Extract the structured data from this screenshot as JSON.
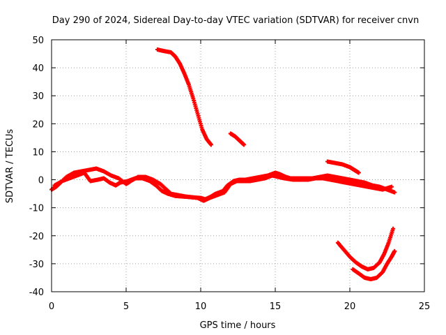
{
  "chart_data": {
    "type": "scatter",
    "title": "Day 290 of 2024, Sidereal Day-to-day VTEC variation (SDTVAR) for receiver cnvn",
    "xlabel": "GPS time / hours",
    "ylabel": "SDTVAR / TECUs",
    "xlim": [
      0,
      25
    ],
    "ylim": [
      -40,
      50
    ],
    "xticks": [
      0,
      5,
      10,
      15,
      20,
      25
    ],
    "yticks": [
      -40,
      -30,
      -20,
      -10,
      0,
      10,
      20,
      30,
      40,
      50
    ],
    "grid": true,
    "marker": "plus",
    "color": "#ff0000",
    "series": [
      {
        "name": "arc-1",
        "points": [
          [
            0.0,
            -3.5
          ],
          [
            0.3,
            -2.5
          ],
          [
            0.6,
            -1.0
          ],
          [
            1.0,
            1.0
          ],
          [
            1.5,
            2.5
          ],
          [
            2.0,
            3.0
          ],
          [
            2.5,
            3.5
          ],
          [
            3.0,
            4.0
          ],
          [
            3.5,
            3.0
          ],
          [
            4.0,
            1.5
          ],
          [
            4.5,
            0.5
          ],
          [
            5.0,
            -1.5
          ],
          [
            5.3,
            -0.5
          ],
          [
            5.8,
            1.0
          ],
          [
            6.3,
            1.0
          ],
          [
            6.8,
            0.0
          ],
          [
            7.3,
            -1.5
          ],
          [
            7.7,
            -3.5
          ],
          [
            8.0,
            -5.0
          ],
          [
            8.5,
            -5.5
          ],
          [
            9.0,
            -6.0
          ],
          [
            9.5,
            -6.3
          ],
          [
            10.0,
            -6.5
          ],
          [
            10.3,
            -7.0
          ],
          [
            10.7,
            -6.0
          ],
          [
            11.0,
            -5.0
          ],
          [
            11.5,
            -4.0
          ],
          [
            11.8,
            -2.0
          ],
          [
            12.2,
            -0.5
          ],
          [
            12.6,
            0.0
          ],
          [
            13.0,
            0.0
          ],
          [
            13.5,
            0.5
          ],
          [
            14.0,
            1.0
          ],
          [
            14.5,
            1.5
          ],
          [
            15.0,
            2.5
          ],
          [
            15.3,
            2.0
          ],
          [
            15.7,
            1.0
          ],
          [
            16.0,
            0.5
          ],
          [
            16.5,
            0.5
          ],
          [
            17.0,
            0.5
          ],
          [
            17.5,
            0.5
          ],
          [
            18.0,
            1.0
          ],
          [
            18.5,
            1.5
          ],
          [
            19.0,
            1.0
          ],
          [
            19.5,
            0.5
          ],
          [
            20.0,
            0.0
          ],
          [
            20.5,
            -0.5
          ],
          [
            21.0,
            -1.0
          ],
          [
            21.5,
            -2.0
          ],
          [
            22.0,
            -2.5
          ],
          [
            22.5,
            -3.5
          ],
          [
            23.0,
            -4.5
          ]
        ]
      },
      {
        "name": "arc-2",
        "points": [
          [
            0.2,
            -2.0
          ],
          [
            0.7,
            -0.5
          ],
          [
            1.2,
            0.5
          ],
          [
            1.7,
            1.5
          ],
          [
            2.2,
            2.5
          ],
          [
            2.6,
            -0.5
          ],
          [
            3.1,
            0.0
          ],
          [
            3.5,
            0.5
          ],
          [
            3.9,
            -1.0
          ],
          [
            4.3,
            -2.0
          ],
          [
            4.6,
            -1.0
          ],
          [
            5.1,
            -0.5
          ],
          [
            5.6,
            0.5
          ],
          [
            6.1,
            0.5
          ],
          [
            6.6,
            -0.5
          ],
          [
            7.0,
            -2.0
          ],
          [
            7.4,
            -4.0
          ],
          [
            7.8,
            -5.0
          ],
          [
            8.3,
            -5.8
          ],
          [
            8.8,
            -6.0
          ],
          [
            9.3,
            -6.2
          ],
          [
            9.8,
            -6.5
          ],
          [
            10.2,
            -7.5
          ],
          [
            10.6,
            -6.5
          ],
          [
            11.1,
            -5.5
          ],
          [
            11.6,
            -4.5
          ],
          [
            12.0,
            -1.5
          ],
          [
            12.4,
            -0.5
          ],
          [
            12.8,
            -0.5
          ],
          [
            13.3,
            -0.5
          ],
          [
            13.8,
            0.0
          ],
          [
            14.3,
            0.5
          ],
          [
            14.8,
            1.5
          ],
          [
            15.2,
            1.0
          ],
          [
            15.6,
            0.5
          ],
          [
            16.2,
            0.0
          ],
          [
            16.7,
            0.0
          ],
          [
            17.2,
            0.0
          ],
          [
            17.7,
            0.5
          ],
          [
            18.2,
            0.5
          ],
          [
            18.7,
            0.0
          ],
          [
            19.2,
            -0.5
          ],
          [
            19.7,
            -1.0
          ],
          [
            20.2,
            -1.5
          ],
          [
            20.7,
            -2.0
          ],
          [
            21.2,
            -2.5
          ],
          [
            21.7,
            -3.0
          ],
          [
            22.2,
            -3.5
          ],
          [
            22.8,
            -2.5
          ]
        ]
      },
      {
        "name": "arc-3",
        "points": [
          [
            7.1,
            46.5
          ],
          [
            7.5,
            46.0
          ],
          [
            8.0,
            45.5
          ],
          [
            8.3,
            44.0
          ],
          [
            8.6,
            41.5
          ],
          [
            8.9,
            38.0
          ],
          [
            9.2,
            34.0
          ],
          [
            9.5,
            29.0
          ],
          [
            9.8,
            23.5
          ],
          [
            10.1,
            18.0
          ],
          [
            10.4,
            14.5
          ],
          [
            10.7,
            12.5
          ]
        ]
      },
      {
        "name": "arc-4",
        "points": [
          [
            12.0,
            16.5
          ],
          [
            12.3,
            15.5
          ],
          [
            12.6,
            14.0
          ],
          [
            12.9,
            12.5
          ]
        ]
      },
      {
        "name": "arc-5",
        "points": [
          [
            18.5,
            6.5
          ],
          [
            19.0,
            6.0
          ],
          [
            19.5,
            5.5
          ],
          [
            20.0,
            4.5
          ],
          [
            20.3,
            3.5
          ],
          [
            20.6,
            2.5
          ]
        ]
      },
      {
        "name": "arc-6",
        "points": [
          [
            19.2,
            -22.5
          ],
          [
            19.6,
            -25.0
          ],
          [
            20.0,
            -27.5
          ],
          [
            20.4,
            -29.5
          ],
          [
            20.8,
            -31.0
          ],
          [
            21.2,
            -32.0
          ],
          [
            21.6,
            -31.5
          ],
          [
            22.0,
            -29.5
          ],
          [
            22.3,
            -26.5
          ],
          [
            22.6,
            -22.5
          ],
          [
            22.9,
            -17.5
          ]
        ]
      },
      {
        "name": "arc-7",
        "points": [
          [
            20.2,
            -32.0
          ],
          [
            20.6,
            -33.5
          ],
          [
            21.0,
            -35.0
          ],
          [
            21.4,
            -35.5
          ],
          [
            21.8,
            -35.0
          ],
          [
            22.2,
            -33.0
          ],
          [
            22.5,
            -30.0
          ],
          [
            22.8,
            -27.5
          ],
          [
            23.0,
            -25.5
          ]
        ]
      }
    ]
  }
}
